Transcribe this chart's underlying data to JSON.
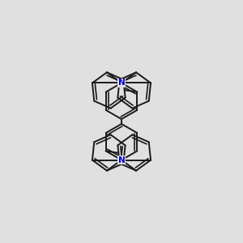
{
  "background_color": "#e0e0e0",
  "bond_color": "#1a1a1a",
  "nitrogen_color": "#0000cc",
  "line_width": 1.4,
  "figsize": [
    3.0,
    3.0
  ],
  "dpi": 100,
  "xlim": [
    0,
    10
  ],
  "ylim": [
    0,
    10
  ]
}
